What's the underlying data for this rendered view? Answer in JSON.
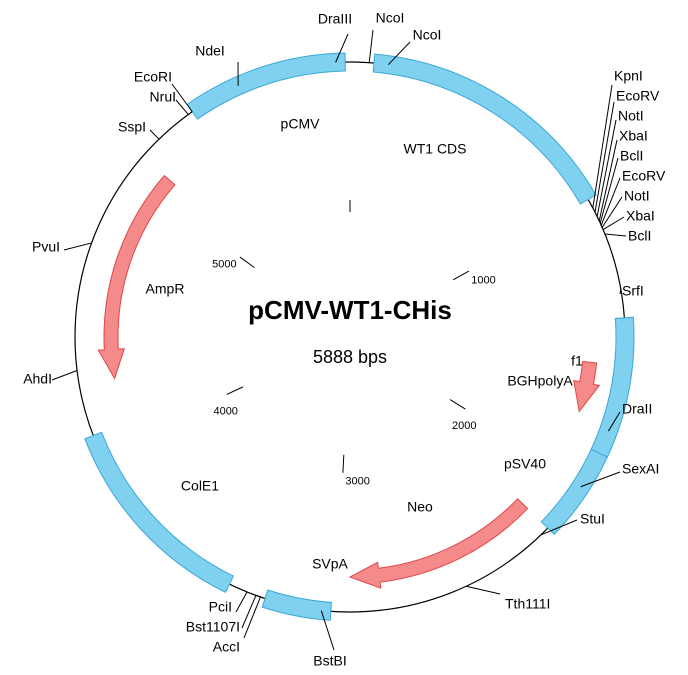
{
  "title": "pCMV-WT1-CHis",
  "size": "5888 bps",
  "scale_ticks": [
    "1000",
    "2000",
    "3000",
    "4000",
    "5000"
  ],
  "features": [
    "pCMV",
    "WT1 CDS",
    "AmpR",
    "f1",
    "BGHpolyA",
    "pSV40",
    "ColE1",
    "Neo",
    "SVpA"
  ],
  "sites": [
    "DraIII",
    "NcoI",
    "NcoI",
    "NdeI",
    "EcoRI",
    "NruI",
    "SspI",
    "KpnI",
    "EcoRV",
    "NotI",
    "XbaI",
    "BclI",
    "EcoRV",
    "NotI",
    "XbaI",
    "BclI",
    "SrfI",
    "DraII",
    "SexAI",
    "StuI",
    "Tth111I",
    "BstBI",
    "AccI",
    "Bst1107I",
    "PciI",
    "AhdI",
    "PvuI"
  ]
}
